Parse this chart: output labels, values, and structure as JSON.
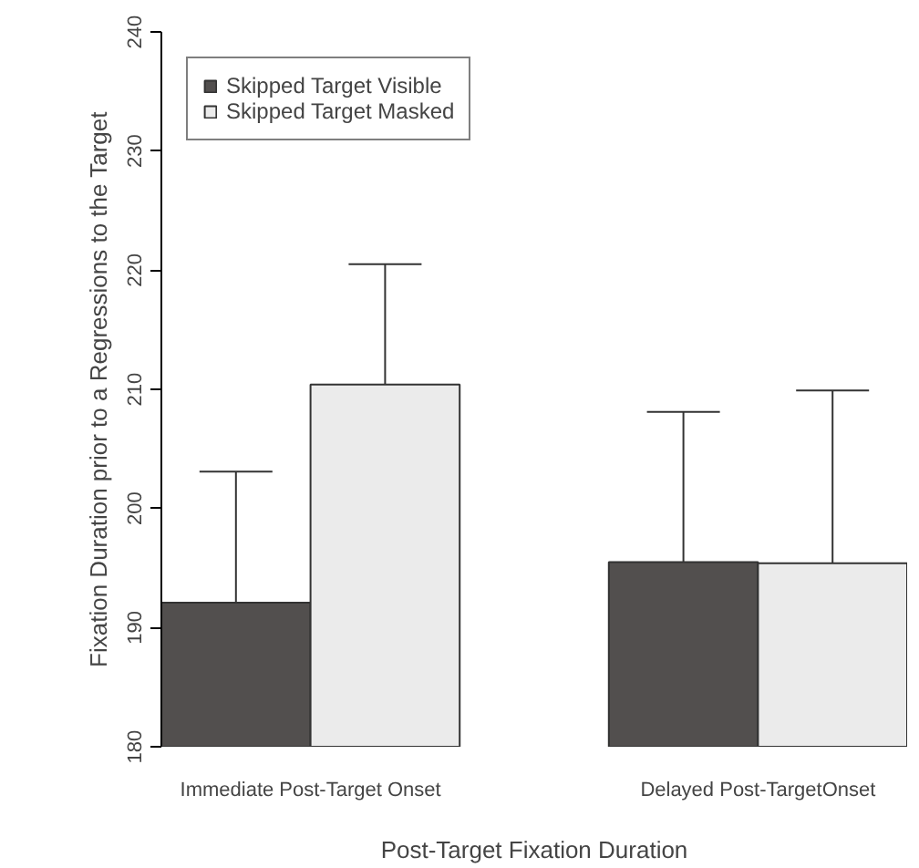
{
  "chart_data": {
    "type": "bar",
    "xlabel": "Post-Target Fixation Duration",
    "ylabel": "Fixation Duration prior to a Regressions to the Target",
    "categories": [
      "Immediate Post-Target Onset",
      "Delayed Post-TargetOnset"
    ],
    "series": [
      {
        "name": "Skipped Target Visible",
        "color": "#524f4e",
        "values": [
          192.1,
          195.5
        ],
        "errors": [
          [
            192.1,
            203.1
          ],
          [
            195.5,
            208.1
          ]
        ]
      },
      {
        "name": "Skipped Target Masked",
        "color": "#ebebeb",
        "values": [
          210.4,
          195.4
        ],
        "errors": [
          [
            210.4,
            220.5
          ],
          [
            195.4,
            209.9
          ]
        ]
      }
    ],
    "ylim": [
      180,
      240
    ],
    "yticks": [
      180,
      190,
      200,
      210,
      220,
      230,
      240
    ],
    "grid": false,
    "legend": "top left"
  }
}
